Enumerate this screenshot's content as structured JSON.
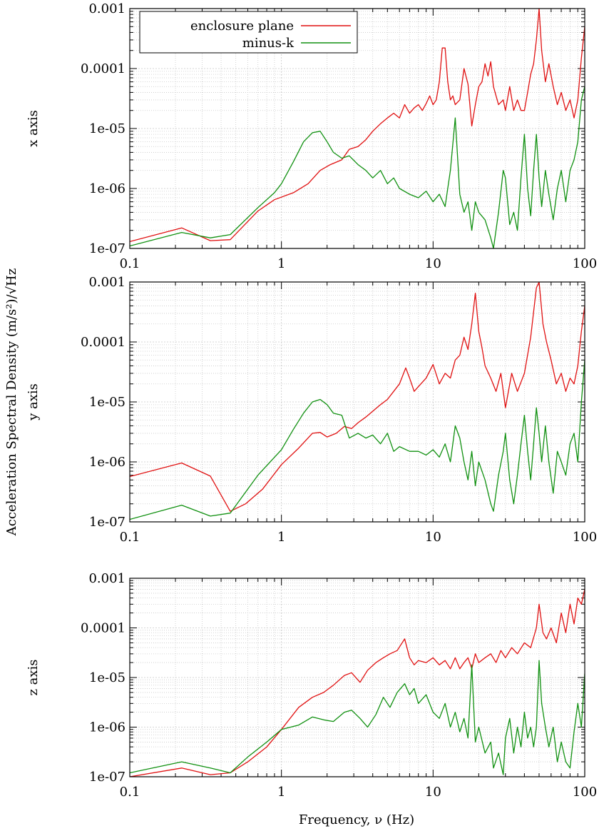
{
  "figure": {
    "ylabel": "Acceleration Spectral Density (m/s²)/√Hz",
    "xlabel": "Frequency, ν (Hz)"
  },
  "legend": {
    "placement": "top-left",
    "entries": [
      {
        "label": "enclosure plane",
        "color": "#e01010"
      },
      {
        "label": "minus-k",
        "color": "#109010"
      }
    ]
  },
  "chart_data": [
    {
      "type": "line",
      "panel_label": "x axis",
      "xscale": "log",
      "yscale": "log",
      "xlim": [
        0.1,
        100
      ],
      "ylim": [
        1e-07,
        0.001
      ],
      "xticks": [
        "0.1",
        "1",
        "10",
        "100"
      ],
      "yticks": [
        "1e-07",
        "1e-06",
        "1e-05",
        "0.0001",
        "0.001"
      ],
      "grid": true,
      "series": [
        {
          "name": "enclosure plane",
          "color": "#e01010",
          "x": [
            0.1,
            0.22,
            0.34,
            0.46,
            0.7,
            0.9,
            1.2,
            1.5,
            1.8,
            2.1,
            2.5,
            2.8,
            3.2,
            3.6,
            4.0,
            4.5,
            5.0,
            5.5,
            6.0,
            6.5,
            7.0,
            7.5,
            8.0,
            8.5,
            9.0,
            9.5,
            10.0,
            10.5,
            11.0,
            11.5,
            12.0,
            12.5,
            13.0,
            13.5,
            14.0,
            15.0,
            16.0,
            17.0,
            18.0,
            19.0,
            20.0,
            21.0,
            22.0,
            23.0,
            24.0,
            25.0,
            27.0,
            29.0,
            30.0,
            32.0,
            34.0,
            36.0,
            38.0,
            40.0,
            42.0,
            44.0,
            46.0,
            48.0,
            50.0,
            52.0,
            55.0,
            58.0,
            62.0,
            66.0,
            70.0,
            75.0,
            80.0,
            85.0,
            90.0,
            95.0,
            100.0
          ],
          "y": [
            1.3e-07,
            2.2e-07,
            1.35e-07,
            1.4e-07,
            4.2e-07,
            6.5e-07,
            8.5e-07,
            1.2e-06,
            2e-06,
            2.5e-06,
            3e-06,
            4.5e-06,
            5e-06,
            6.5e-06,
            9e-06,
            1.2e-05,
            1.5e-05,
            1.8e-05,
            1.5e-05,
            2.5e-05,
            1.8e-05,
            2.2e-05,
            2.5e-05,
            2e-05,
            2.6e-05,
            3.5e-05,
            2.5e-05,
            3e-05,
            6e-05,
            0.00022,
            0.00022,
            6e-05,
            3e-05,
            3.5e-05,
            2.5e-05,
            3e-05,
            0.0001,
            5.5e-05,
            1.1e-05,
            2.5e-05,
            5e-05,
            6e-05,
            0.00012,
            7.5e-05,
            0.00013,
            5e-05,
            2.5e-05,
            3e-05,
            2e-05,
            5e-05,
            2e-05,
            3e-05,
            2e-05,
            2e-05,
            4e-05,
            8e-05,
            0.00012,
            0.0003,
            0.001,
            0.0002,
            6e-05,
            0.00012,
            5e-05,
            2.5e-05,
            4e-05,
            2e-05,
            3e-05,
            1.5e-05,
            3e-05,
            0.00015,
            0.0005
          ]
        },
        {
          "name": "minus-k",
          "color": "#109010",
          "x": [
            0.1,
            0.22,
            0.34,
            0.46,
            0.7,
            0.9,
            1.0,
            1.2,
            1.4,
            1.6,
            1.8,
            2.0,
            2.2,
            2.5,
            2.8,
            3.2,
            3.6,
            4.0,
            4.5,
            5.0,
            5.5,
            6.0,
            7.0,
            8.0,
            9.0,
            10.0,
            11.0,
            12.0,
            13.0,
            14.0,
            15.0,
            16.0,
            17.0,
            18.0,
            19.0,
            20.0,
            22.0,
            24.0,
            25.0,
            27.0,
            29.0,
            30.0,
            32.0,
            34.0,
            36.0,
            38.0,
            40.0,
            42.0,
            44.0,
            46.0,
            48.0,
            50.0,
            52.0,
            55.0,
            58.0,
            62.0,
            66.0,
            70.0,
            75.0,
            80.0,
            85.0,
            90.0,
            95.0,
            100.0
          ],
          "y": [
            1.1e-07,
            1.85e-07,
            1.5e-07,
            1.7e-07,
            4.8e-07,
            8.5e-07,
            1.2e-06,
            2.8e-06,
            6e-06,
            8.5e-06,
            9e-06,
            6e-06,
            4e-06,
            3.2e-06,
            3.5e-06,
            2.5e-06,
            2e-06,
            1.5e-06,
            2e-06,
            1.2e-06,
            1.5e-06,
            1e-06,
            8e-07,
            7e-07,
            9e-07,
            6e-07,
            8e-07,
            5e-07,
            2e-06,
            1.5e-05,
            8e-07,
            4e-07,
            6e-07,
            2e-07,
            6e-07,
            4e-07,
            3e-07,
            1.5e-07,
            1e-07,
            4e-07,
            2e-06,
            1.5e-06,
            2.5e-07,
            4e-07,
            2e-07,
            1.5e-06,
            8e-06,
            1e-06,
            3.5e-07,
            2e-06,
            8e-06,
            1.5e-06,
            5e-07,
            2e-06,
            8e-07,
            3e-07,
            1e-06,
            2e-06,
            6e-07,
            2e-06,
            3e-06,
            6e-06,
            3e-05,
            5e-05
          ]
        }
      ]
    },
    {
      "type": "line",
      "panel_label": "y axis",
      "xscale": "log",
      "yscale": "log",
      "xlim": [
        0.1,
        100
      ],
      "ylim": [
        1e-07,
        0.001
      ],
      "xticks": [
        "0.1",
        "1",
        "10",
        "100"
      ],
      "yticks": [
        "1e-07",
        "1e-06",
        "1e-05",
        "0.0001",
        "0.001"
      ],
      "grid": true,
      "series": [
        {
          "name": "enclosure plane",
          "color": "#e01010",
          "x": [
            0.1,
            0.22,
            0.34,
            0.46,
            0.58,
            0.75,
            1.0,
            1.3,
            1.6,
            1.8,
            2.0,
            2.3,
            2.6,
            2.9,
            3.2,
            3.6,
            4.0,
            4.5,
            5.0,
            5.5,
            6.0,
            6.6,
            7.0,
            7.5,
            8.0,
            9.0,
            10.0,
            11.0,
            12.0,
            13.0,
            14.0,
            15.0,
            16.0,
            17.0,
            18.0,
            19.0,
            20.0,
            21.0,
            22.0,
            24.0,
            26.0,
            28.0,
            30.0,
            33.0,
            36.0,
            40.0,
            44.0,
            48.0,
            50.0,
            53.0,
            56.0,
            60.0,
            65.0,
            70.0,
            75.0,
            80.0,
            85.0,
            90.0,
            95.0,
            100.0
          ],
          "y": [
            5.7e-07,
            9.6e-07,
            5.8e-07,
            1.5e-07,
            2e-07,
            3.5e-07,
            9e-07,
            1.7e-06,
            3e-06,
            3.1e-06,
            2.6e-06,
            3e-06,
            3.9e-06,
            3.6e-06,
            4.5e-06,
            5.6e-06,
            7e-06,
            9e-06,
            1.1e-05,
            1.5e-05,
            2e-05,
            3.7e-05,
            2.5e-05,
            1.5e-05,
            1.8e-05,
            2.5e-05,
            4.2e-05,
            2e-05,
            3e-05,
            2.5e-05,
            5e-05,
            6e-05,
            0.00012,
            7.5e-05,
            0.0002,
            0.00065,
            0.00015,
            8e-05,
            4e-05,
            2.5e-05,
            1.5e-05,
            3e-05,
            8e-06,
            3e-05,
            1.5e-05,
            3e-05,
            0.00012,
            0.0008,
            0.001,
            0.0002,
            0.0001,
            5e-05,
            2e-05,
            3e-05,
            1.5e-05,
            2.5e-05,
            2e-05,
            4e-05,
            0.00015,
            0.0004
          ]
        },
        {
          "name": "minus-k",
          "color": "#109010",
          "x": [
            0.1,
            0.22,
            0.34,
            0.46,
            0.7,
            1.0,
            1.2,
            1.4,
            1.6,
            1.8,
            2.0,
            2.2,
            2.5,
            2.8,
            3.2,
            3.6,
            4.0,
            4.5,
            5.0,
            5.5,
            6.0,
            7.0,
            8.0,
            9.0,
            10.0,
            11.0,
            12.0,
            13.0,
            14.0,
            15.0,
            16.0,
            17.0,
            18.0,
            19.0,
            20.0,
            22.0,
            24.0,
            25.0,
            27.0,
            29.0,
            30.0,
            32.0,
            34.0,
            36.0,
            38.0,
            40.0,
            42.0,
            44.0,
            46.0,
            48.0,
            50.0,
            52.0,
            55.0,
            58.0,
            62.0,
            66.0,
            70.0,
            75.0,
            80.0,
            85.0,
            90.0,
            95.0,
            100.0
          ],
          "y": [
            1.1e-07,
            1.9e-07,
            1.25e-07,
            1.4e-07,
            6e-07,
            1.6e-06,
            3.5e-06,
            6.5e-06,
            1e-05,
            1.1e-05,
            9e-06,
            6.5e-06,
            6e-06,
            2.5e-06,
            3e-06,
            2.5e-06,
            2.8e-06,
            2e-06,
            3e-06,
            1.5e-06,
            1.8e-06,
            1.5e-06,
            1.5e-06,
            1.3e-06,
            1.6e-06,
            1.2e-06,
            2e-06,
            1e-06,
            4e-06,
            2.5e-06,
            1e-06,
            5e-07,
            1.5e-06,
            4e-07,
            1e-06,
            5e-07,
            2e-07,
            1.5e-07,
            6e-07,
            1.5e-06,
            3e-06,
            5e-07,
            2e-07,
            6e-07,
            2e-06,
            6e-06,
            1.5e-06,
            5e-07,
            2e-06,
            8e-06,
            3e-06,
            1e-06,
            4e-06,
            1e-06,
            3e-07,
            1.5e-06,
            1e-06,
            6e-07,
            2e-06,
            3e-06,
            1e-06,
            1e-05,
            5e-05
          ]
        }
      ]
    },
    {
      "type": "line",
      "panel_label": "z axis",
      "xscale": "log",
      "yscale": "log",
      "xlim": [
        0.1,
        100
      ],
      "ylim": [
        1e-07,
        0.001
      ],
      "xticks": [
        "0.1",
        "1",
        "10",
        "100"
      ],
      "yticks": [
        "1e-07",
        "1e-06",
        "1e-05",
        "0.0001",
        "0.001"
      ],
      "grid": true,
      "series": [
        {
          "name": "enclosure plane",
          "color": "#e01010",
          "x": [
            0.1,
            0.22,
            0.34,
            0.46,
            0.6,
            0.8,
            1.0,
            1.3,
            1.6,
            1.9,
            2.2,
            2.6,
            2.9,
            3.3,
            3.7,
            4.2,
            4.7,
            5.2,
            5.8,
            6.5,
            7.0,
            7.5,
            8.0,
            9.0,
            10.0,
            11.0,
            12.0,
            13.0,
            14.0,
            15.0,
            16.0,
            17.0,
            18.0,
            19.0,
            20.0,
            22.0,
            24.0,
            26.0,
            28.0,
            30.0,
            33.0,
            36.0,
            40.0,
            44.0,
            48.0,
            50.0,
            53.0,
            56.0,
            60.0,
            65.0,
            70.0,
            75.0,
            80.0,
            85.0,
            90.0,
            95.0,
            100.0
          ],
          "y": [
            1e-07,
            1.5e-07,
            1.1e-07,
            1.2e-07,
            2e-07,
            4e-07,
            9e-07,
            2.5e-06,
            4e-06,
            5e-06,
            7e-06,
            1.1e-05,
            1.25e-05,
            8e-06,
            1.4e-05,
            2e-05,
            2.5e-05,
            3e-05,
            3.5e-05,
            6e-05,
            2.5e-05,
            1.8e-05,
            2.2e-05,
            2e-05,
            2.5e-05,
            1.8e-05,
            2.2e-05,
            1.5e-05,
            2.5e-05,
            1.5e-05,
            2e-05,
            2.5e-05,
            1.5e-05,
            3e-05,
            2e-05,
            2.5e-05,
            3e-05,
            2e-05,
            3.5e-05,
            2.5e-05,
            4e-05,
            3e-05,
            5e-05,
            4e-05,
            0.0001,
            0.0003,
            8e-05,
            6e-05,
            0.0001,
            5e-05,
            0.0002,
            8e-05,
            0.0003,
            0.00012,
            0.0004,
            0.0003,
            0.0006
          ]
        },
        {
          "name": "minus-k",
          "color": "#109010",
          "x": [
            0.1,
            0.22,
            0.34,
            0.46,
            0.6,
            0.8,
            1.0,
            1.3,
            1.6,
            1.9,
            2.2,
            2.6,
            2.9,
            3.3,
            3.7,
            4.2,
            4.7,
            5.2,
            5.8,
            6.5,
            7.0,
            7.5,
            8.0,
            9.0,
            10.0,
            11.0,
            12.0,
            13.0,
            14.0,
            15.0,
            16.0,
            17.0,
            18.0,
            19.0,
            20.0,
            22.0,
            24.0,
            25.0,
            27.0,
            29.0,
            30.0,
            32.0,
            34.0,
            36.0,
            38.0,
            40.0,
            42.0,
            44.0,
            46.0,
            48.0,
            50.0,
            52.0,
            55.0,
            58.0,
            62.0,
            66.0,
            70.0,
            75.0,
            80.0,
            85.0,
            90.0,
            95.0,
            100.0
          ],
          "y": [
            1.2e-07,
            2e-07,
            1.5e-07,
            1.2e-07,
            2.5e-07,
            5e-07,
            9e-07,
            1.1e-06,
            1.6e-06,
            1.4e-06,
            1.3e-06,
            2e-06,
            2.2e-06,
            1.5e-06,
            1e-06,
            1.8e-06,
            4e-06,
            2.5e-06,
            5e-06,
            7.5e-06,
            4.5e-06,
            6e-06,
            3e-06,
            4.5e-06,
            2e-06,
            1.5e-06,
            3e-06,
            1e-06,
            2e-06,
            8e-07,
            1.5e-06,
            6e-07,
            1.8e-05,
            5e-07,
            1e-06,
            3e-07,
            5e-07,
            1.5e-07,
            3e-07,
            1.1e-07,
            6e-07,
            1.5e-06,
            3e-07,
            1e-06,
            4e-07,
            2e-06,
            6e-07,
            1e-06,
            4e-07,
            1e-06,
            2.2e-05,
            3e-06,
            1e-06,
            4e-07,
            1e-06,
            2e-07,
            5e-07,
            2e-07,
            1.5e-07,
            8e-07,
            3e-06,
            1e-06,
            1.2e-05
          ]
        }
      ]
    }
  ]
}
